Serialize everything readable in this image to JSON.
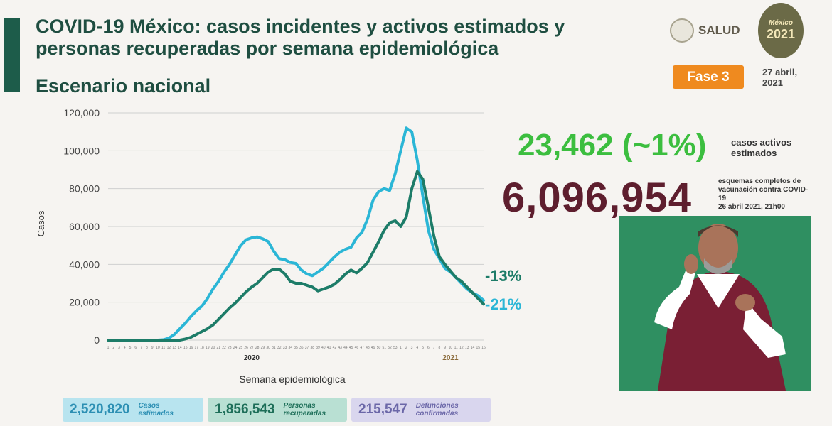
{
  "header": {
    "title": "COVID-19 México: casos incidentes y activos estimados y personas recuperadas por semana epidemiológica",
    "subtitle": "Escenario nacional",
    "salud_label": "SALUD",
    "emblem_year": "2021",
    "emblem_text": "México",
    "fase": "Fase 3",
    "fecha": "27 abril, 2021"
  },
  "highlights": {
    "active_value": "23,462 (~1%)",
    "active_label": "casos activos estimados",
    "vaccine_value": "6,096,954",
    "vaccine_label": "esquemas completos de vacunación contra COVID-19",
    "vaccine_date": "26 abril 2021, 21h00",
    "pct_recovered": "-13%",
    "pct_cases": "-21%"
  },
  "stats": {
    "cases_value": "2,520,820",
    "cases_label": "Casos estimados",
    "recovered_value": "1,856,543",
    "recovered_label": "Personas recuperadas",
    "deaths_value": "215,547",
    "deaths_label": "Defunciones confirmadas"
  },
  "colors": {
    "cases": "#2bb6d6",
    "recovered": "#1d7c68",
    "title": "#1f4e41"
  },
  "chart_data": {
    "type": "line",
    "xlabel": "Semana epidemiológica",
    "ylabel": "Casos",
    "ylim": [
      0,
      120000
    ],
    "yticks": [
      0,
      20000,
      40000,
      60000,
      80000,
      100000,
      120000
    ],
    "ytick_labels": [
      "0",
      "20,000",
      "40,000",
      "60,000",
      "80,000",
      "100,000",
      "120,000"
    ],
    "year_labels": [
      {
        "label": "2020",
        "week": 27
      },
      {
        "label": "2021",
        "week": 63
      }
    ],
    "week_ticks": [
      "1",
      "2",
      "3",
      "4",
      "5",
      "6",
      "7",
      "8",
      "9",
      "10",
      "11",
      "12",
      "13",
      "14",
      "15",
      "16",
      "17",
      "18",
      "19",
      "20",
      "21",
      "22",
      "23",
      "24",
      "25",
      "26",
      "27",
      "28",
      "29",
      "30",
      "31",
      "32",
      "33",
      "34",
      "35",
      "36",
      "37",
      "38",
      "39",
      "40",
      "41",
      "42",
      "43",
      "44",
      "45",
      "46",
      "47",
      "48",
      "49",
      "50",
      "51",
      "52",
      "53",
      "1",
      "2",
      "3",
      "4",
      "5",
      "6",
      "7",
      "8",
      "9",
      "10",
      "11",
      "12",
      "13",
      "14",
      "15",
      "16"
    ],
    "series": [
      {
        "key": "cases",
        "values": [
          0,
          0,
          0,
          0,
          0,
          0,
          0,
          0,
          0,
          0,
          200,
          1000,
          3000,
          6000,
          9000,
          12500,
          15500,
          18000,
          22000,
          27000,
          31000,
          36000,
          40000,
          45000,
          50000,
          53000,
          54000,
          54500,
          53500,
          52000,
          47000,
          43000,
          42500,
          41000,
          40500,
          37000,
          35000,
          34000,
          36000,
          38000,
          41000,
          44000,
          46500,
          48000,
          49000,
          54000,
          57000,
          64000,
          74000,
          78500,
          80000,
          79000,
          88000,
          100000,
          112000,
          110000,
          95000,
          76000,
          58000,
          48000,
          43000,
          38000,
          36000,
          33000,
          30000,
          27000,
          25000,
          23462,
          21000
        ]
      },
      {
        "key": "recovered",
        "values": [
          0,
          0,
          0,
          0,
          0,
          0,
          0,
          0,
          0,
          0,
          0,
          0,
          0,
          0,
          600,
          1500,
          3000,
          4500,
          6000,
          8000,
          11000,
          14000,
          17000,
          19500,
          22500,
          25500,
          28000,
          30000,
          33000,
          36000,
          37500,
          37500,
          35000,
          31000,
          30000,
          30000,
          29000,
          28000,
          26000,
          27000,
          28000,
          29500,
          32000,
          35000,
          37000,
          35500,
          38000,
          41000,
          46500,
          52000,
          58000,
          62000,
          63000,
          60000,
          65000,
          80000,
          89000,
          85000,
          70000,
          55000,
          44000,
          40000,
          36500,
          33000,
          31000,
          28000,
          25000,
          22000,
          19000
        ]
      }
    ]
  }
}
